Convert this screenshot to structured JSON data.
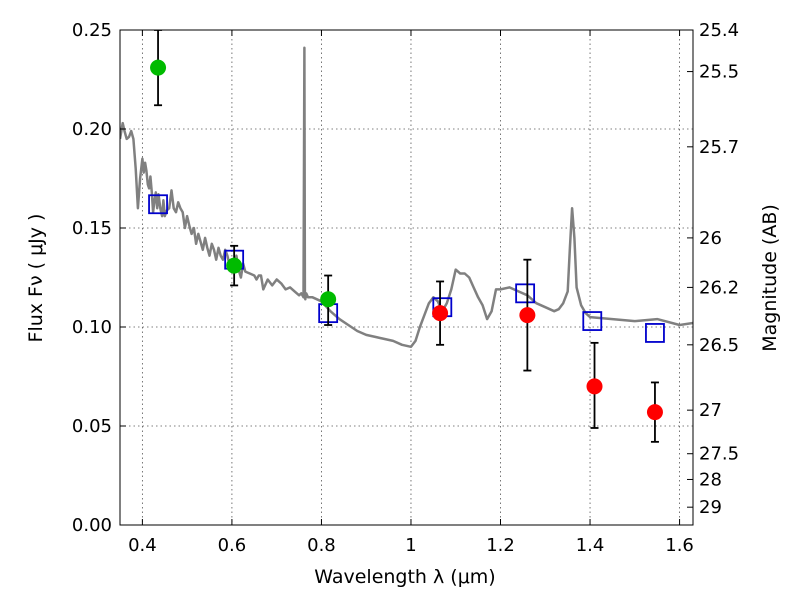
{
  "chart_data": {
    "type": "scatter",
    "xlabel": "Wavelength  λ (μm)",
    "ylabel": "Flux  Fν  ( μJy )",
    "y2label": "Magnitude (AB)",
    "xlim": [
      0.35,
      1.63
    ],
    "ylim": [
      0.0,
      0.25
    ],
    "grid": true,
    "x_ticks": [
      0.4,
      0.6,
      0.8,
      1.0,
      1.2,
      1.4,
      1.6
    ],
    "x_tick_labels": [
      "0.4",
      "0.6",
      "0.8",
      "1",
      "1.2",
      "1.4",
      "1.6"
    ],
    "y_ticks": [
      0.0,
      0.05,
      0.1,
      0.15,
      0.2,
      0.25
    ],
    "y_tick_labels": [
      "0.00",
      "0.05",
      "0.10",
      "0.15",
      "0.20",
      "0.25"
    ],
    "y2_ticks": [
      {
        "label": "25.4",
        "flux": 0.25
      },
      {
        "label": "25.5",
        "flux": 0.229
      },
      {
        "label": "25.7",
        "flux": 0.191
      },
      {
        "label": "26",
        "flux": 0.145
      },
      {
        "label": "26.2",
        "flux": 0.12
      },
      {
        "label": "26.5",
        "flux": 0.091
      },
      {
        "label": "27",
        "flux": 0.058
      },
      {
        "label": "27.5",
        "flux": 0.036
      },
      {
        "label": "28",
        "flux": 0.023
      },
      {
        "label": "29",
        "flux": 0.009
      }
    ],
    "colors": {
      "sed": "#808080",
      "green": "#00bb00",
      "red": "#ff0000",
      "model": "#0000cc",
      "errorbar": "#000000",
      "grid": "#555555"
    },
    "series": [
      {
        "kind": "line",
        "x": [
          0.35,
          0.356,
          0.36,
          0.365,
          0.37,
          0.375,
          0.38,
          0.385,
          0.39,
          0.395,
          0.4,
          0.403,
          0.406,
          0.409,
          0.412,
          0.415,
          0.418,
          0.421,
          0.424,
          0.427,
          0.43,
          0.433,
          0.436,
          0.44,
          0.444,
          0.447,
          0.45,
          0.455,
          0.46,
          0.465,
          0.47,
          0.475,
          0.48,
          0.485,
          0.49,
          0.495,
          0.5,
          0.505,
          0.51,
          0.515,
          0.52,
          0.525,
          0.53,
          0.535,
          0.54,
          0.545,
          0.55,
          0.555,
          0.56,
          0.565,
          0.57,
          0.575,
          0.58,
          0.585,
          0.59,
          0.595,
          0.6,
          0.605,
          0.61,
          0.615,
          0.62,
          0.625,
          0.63,
          0.64,
          0.65,
          0.655,
          0.66,
          0.665,
          0.67,
          0.68,
          0.69,
          0.7,
          0.71,
          0.72,
          0.73,
          0.74,
          0.75,
          0.755,
          0.76,
          0.762,
          0.763,
          0.764,
          0.766,
          0.77,
          0.78,
          0.8,
          0.82,
          0.84,
          0.86,
          0.88,
          0.9,
          0.92,
          0.94,
          0.96,
          0.98,
          1.0,
          1.01,
          1.02,
          1.03,
          1.04,
          1.05,
          1.06,
          1.07,
          1.08,
          1.09,
          1.1,
          1.11,
          1.12,
          1.13,
          1.14,
          1.15,
          1.16,
          1.17,
          1.18,
          1.19,
          1.2,
          1.22,
          1.24,
          1.26,
          1.28,
          1.3,
          1.32,
          1.33,
          1.34,
          1.35,
          1.355,
          1.36,
          1.365,
          1.37,
          1.38,
          1.39,
          1.4,
          1.45,
          1.5,
          1.55,
          1.6,
          1.63
        ],
        "y": [
          0.195,
          0.203,
          0.199,
          0.195,
          0.196,
          0.199,
          0.195,
          0.18,
          0.16,
          0.175,
          0.185,
          0.178,
          0.183,
          0.179,
          0.172,
          0.17,
          0.176,
          0.168,
          0.158,
          0.164,
          0.168,
          0.16,
          0.167,
          0.16,
          0.156,
          0.164,
          0.156,
          0.159,
          0.16,
          0.169,
          0.16,
          0.158,
          0.163,
          0.16,
          0.158,
          0.15,
          0.156,
          0.151,
          0.147,
          0.15,
          0.142,
          0.147,
          0.143,
          0.139,
          0.145,
          0.14,
          0.136,
          0.142,
          0.139,
          0.134,
          0.14,
          0.136,
          0.134,
          0.139,
          0.136,
          0.131,
          0.133,
          0.13,
          0.136,
          0.129,
          0.125,
          0.132,
          0.128,
          0.127,
          0.126,
          0.124,
          0.126,
          0.126,
          0.119,
          0.124,
          0.121,
          0.124,
          0.122,
          0.119,
          0.12,
          0.118,
          0.116,
          0.117,
          0.115,
          0.241,
          0.116,
          0.114,
          0.117,
          0.115,
          0.115,
          0.113,
          0.108,
          0.104,
          0.101,
          0.098,
          0.096,
          0.095,
          0.094,
          0.093,
          0.091,
          0.09,
          0.093,
          0.1,
          0.106,
          0.112,
          0.115,
          0.113,
          0.108,
          0.112,
          0.119,
          0.129,
          0.127,
          0.127,
          0.125,
          0.12,
          0.115,
          0.111,
          0.104,
          0.108,
          0.119,
          0.119,
          0.12,
          0.118,
          0.116,
          0.112,
          0.11,
          0.108,
          0.109,
          0.112,
          0.118,
          0.14,
          0.16,
          0.145,
          0.12,
          0.111,
          0.107,
          0.105,
          0.104,
          0.103,
          0.104,
          0.101,
          0.102
        ]
      },
      {
        "kind": "model-squares",
        "x": [
          0.435,
          0.605,
          0.815,
          1.07,
          1.255,
          1.405,
          1.545
        ],
        "y": [
          0.162,
          0.134,
          0.107,
          0.11,
          0.117,
          0.103,
          0.097
        ]
      },
      {
        "kind": "points",
        "color_key": "green",
        "x": [
          0.435,
          0.605,
          0.815
        ],
        "y": [
          0.231,
          0.131,
          0.114
        ],
        "err_low": [
          0.212,
          0.121,
          0.101
        ],
        "err_high": [
          0.25,
          0.141,
          0.126
        ]
      },
      {
        "kind": "points",
        "color_key": "red",
        "x": [
          1.065,
          1.26,
          1.41,
          1.545
        ],
        "y": [
          0.107,
          0.106,
          0.07,
          0.057
        ],
        "err_low": [
          0.091,
          0.078,
          0.049,
          0.042
        ],
        "err_high": [
          0.123,
          0.134,
          0.092,
          0.072
        ]
      }
    ]
  }
}
